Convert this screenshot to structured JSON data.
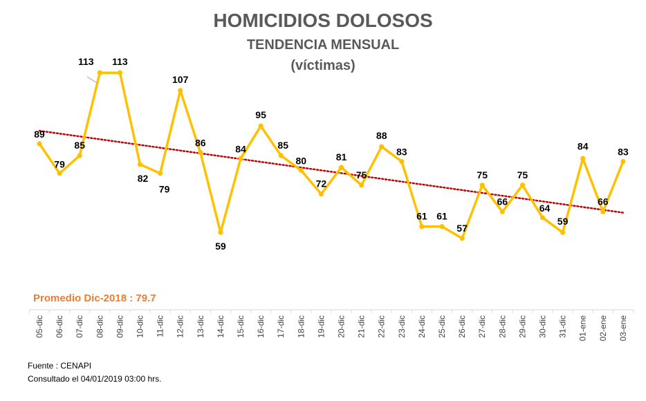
{
  "chart_data": {
    "type": "line",
    "title": "HOMICIDIOS DOLOSOS",
    "subtitle": "TENDENCIA MENSUAL",
    "subtitle2": "(víctimas)",
    "categories": [
      "05-dic",
      "06-dic",
      "07-dic",
      "08-dic",
      "09-dic",
      "10-dic",
      "11-dic",
      "12-dic",
      "13-dic",
      "14-dic",
      "15-dic",
      "16-dic",
      "17-dic",
      "18-dic",
      "19-dic",
      "20-dic",
      "21-dic",
      "22-dic",
      "23-dic",
      "24-dic",
      "25-dic",
      "26-dic",
      "27-dic",
      "28-dic",
      "29-dic",
      "30-dic",
      "31-dic",
      "01-ene",
      "02-ene",
      "03-ene"
    ],
    "series": [
      {
        "values": [
          89,
          79,
          85,
          113,
          113,
          82,
          79,
          107,
          86,
          59,
          84,
          95,
          85,
          80,
          72,
          81,
          75,
          88,
          83,
          61,
          61,
          57,
          75,
          66,
          75,
          64,
          59,
          84,
          66,
          83
        ],
        "color": "#ffc000"
      }
    ],
    "trendline": {
      "type": "linear",
      "color": "#c00000",
      "style": "dotted"
    },
    "ylim": [
      40,
      130
    ],
    "grid": false,
    "legend": "none"
  },
  "annotations": {
    "average": "Promedio Dic-2018 : 79.7",
    "source": "Fuente : CENAPI",
    "consulted": "Consultado el 04/01/2019  03:00  hrs."
  }
}
